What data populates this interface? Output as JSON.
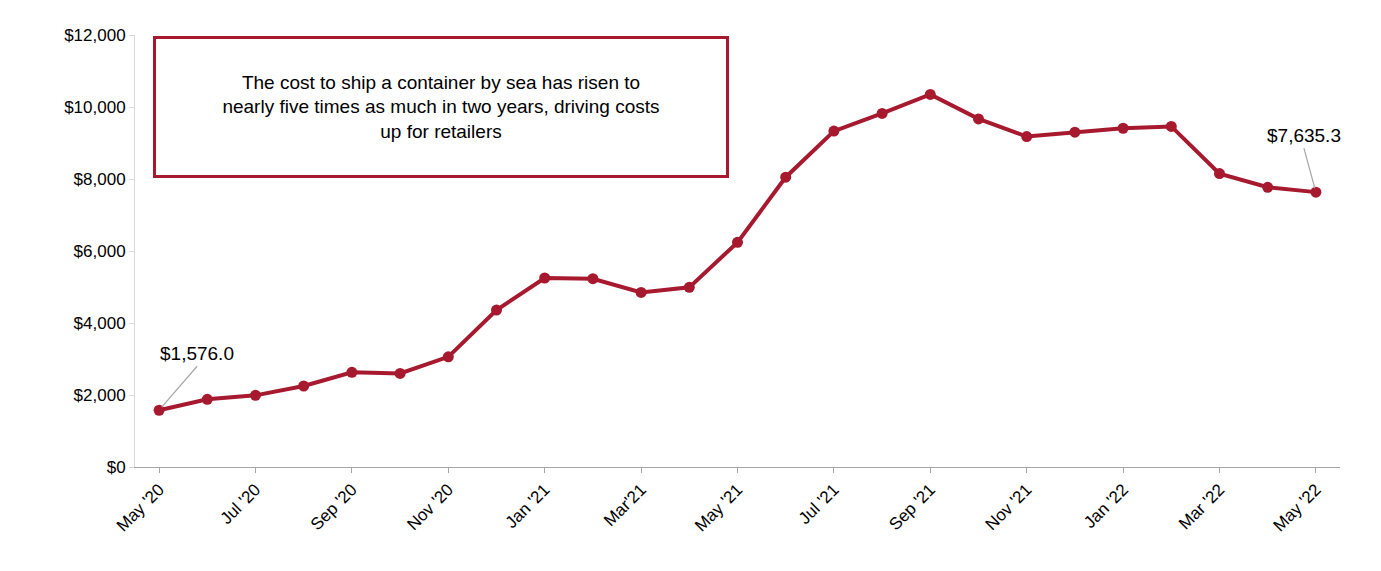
{
  "chart_data": {
    "type": "line",
    "annotation": [
      "The cost to ship a container by sea has risen to",
      "nearly five times as much in two years, driving costs",
      "up for retailers"
    ],
    "categories": [
      "May '20",
      null,
      "Jul '20",
      null,
      "Sep '20",
      null,
      "Nov '20",
      null,
      "Jan '21",
      null,
      "Mar'21",
      null,
      "May '21",
      null,
      "Jul '21",
      null,
      "Sep '21",
      null,
      "Nov '21",
      null,
      "Jan '22",
      null,
      "Mar '22",
      null,
      "May '22"
    ],
    "values": [
      1576.0,
      1880,
      1990,
      2250,
      2630,
      2600,
      3060,
      4360,
      5250,
      5230,
      4850,
      4990,
      6240,
      8050,
      9330,
      9820,
      10350,
      9670,
      9180,
      9300,
      9410,
      9460,
      8150,
      7770,
      7635.3
    ],
    "value_labels": [
      "$1,576.0",
      null,
      null,
      null,
      null,
      null,
      null,
      null,
      null,
      null,
      null,
      null,
      null,
      null,
      null,
      null,
      null,
      null,
      null,
      null,
      null,
      null,
      null,
      null,
      "$7,635.3"
    ],
    "color": "#a6192e",
    "marker": "circle",
    "ylim": [
      0,
      12000
    ],
    "yticks": [
      {
        "value": 0,
        "label": "$0"
      },
      {
        "value": 2000,
        "label": "$2,000"
      },
      {
        "value": 4000,
        "label": "$4,000"
      },
      {
        "value": 6000,
        "label": "$6,000"
      },
      {
        "value": 8000,
        "label": "$8,000"
      },
      {
        "value": 10000,
        "label": "$10,000"
      },
      {
        "value": 12000,
        "label": "$12,000"
      }
    ],
    "grid": false
  }
}
